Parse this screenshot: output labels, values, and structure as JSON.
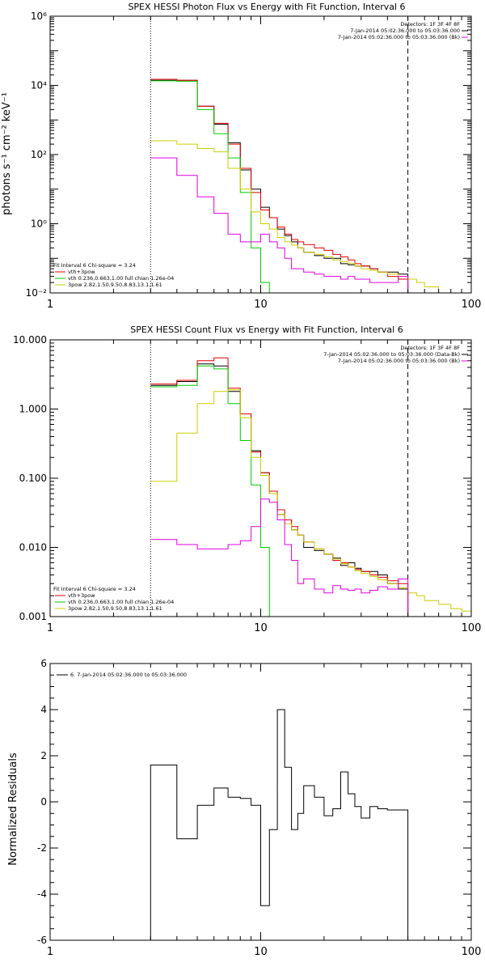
{
  "chart_data": [
    {
      "type": "line",
      "title": "SPEX HESSI Photon Flux vs Energy with Fit Function, Interval 6",
      "ylabel": "photons s⁻¹ cm⁻² keV⁻¹",
      "xlabel": "",
      "xscale": "log",
      "yscale": "log",
      "xlim": [
        1,
        100
      ],
      "ylim": [
        0.01,
        1000000
      ],
      "x_ticks": [
        {
          "value": 1,
          "label": "1"
        },
        {
          "value": 10,
          "label": "10"
        },
        {
          "value": 100,
          "label": "100"
        }
      ],
      "y_ticks": [
        {
          "value": 0.01,
          "label": "10⁻²"
        },
        {
          "value": 1,
          "label": "10⁰"
        },
        {
          "value": 100,
          "label": "10²"
        },
        {
          "value": 10000,
          "label": "10⁴"
        },
        {
          "value": 1000000,
          "label": "10⁶"
        }
      ],
      "vlines": [
        {
          "x": 3,
          "style": "dotted"
        },
        {
          "x": 50,
          "style": "dashed"
        }
      ],
      "legend_topright": [
        {
          "text": "Detectors: 1F 3F 4F 8F",
          "color": "#000000"
        },
        {
          "text": "7-Jan-2014 05:02:36.000 to 05:03:36.000",
          "color": "#000000"
        },
        {
          "text": "7-Jan-2014 05:02:36.000 to 05:03:36.000 (Bk)",
          "color": "#e000e0"
        }
      ],
      "legend_bottomleft": [
        {
          "text": "Fit Interval  6    Chi-square = 3.24",
          "color": "#000000"
        },
        {
          "text": "vth+3pow",
          "color": "#e00000"
        },
        {
          "text": "vth 0.236,0.663,1.00  full chian 1.26e-04",
          "color": "#00cc00"
        },
        {
          "text": "3pow 2.82,1.50,9.50,8.83,13.1,1.61",
          "color": "#cccc00"
        }
      ],
      "series": [
        {
          "name": "7-Jan-2014 05:02:36.000 to 05:03:36.000",
          "color": "#000000",
          "edges": [
            3,
            4,
            5,
            6,
            7,
            8,
            9,
            10,
            11,
            12,
            13,
            14,
            15,
            16,
            18,
            20,
            22,
            24,
            26,
            28,
            30,
            33,
            36,
            40,
            45,
            50
          ],
          "values": [
            14000,
            14000,
            2500,
            750,
            220,
            36,
            10,
            3,
            1.5,
            0.7,
            0.45,
            0.3,
            0.2,
            0.15,
            0.12,
            0.1,
            0.1,
            0.07,
            0.065,
            0.06,
            0.06,
            0.05,
            0.04,
            0.04,
            0.035
          ]
        },
        {
          "name": "vth+3pow",
          "color": "#e00000",
          "edges": [
            3,
            4,
            5,
            6,
            7,
            8,
            9,
            10,
            11,
            12,
            13,
            14,
            15,
            16,
            18,
            20,
            22,
            24,
            26,
            28,
            30,
            33,
            36,
            40,
            45,
            50
          ],
          "values": [
            15000,
            14000,
            2500,
            800,
            200,
            40,
            8,
            2.5,
            1.5,
            0.8,
            0.5,
            0.35,
            0.3,
            0.25,
            0.2,
            0.17,
            0.13,
            0.11,
            0.09,
            0.07,
            0.06,
            0.05,
            0.04,
            0.03,
            0.025
          ]
        },
        {
          "name": "vth",
          "color": "#00cc00",
          "edges": [
            3,
            4,
            5,
            6,
            7,
            8,
            9,
            10,
            11
          ],
          "values": [
            13500,
            13000,
            2000,
            400,
            80,
            8,
            0.2,
            0.02
          ]
        },
        {
          "name": "3pow",
          "color": "#cccc00",
          "edges": [
            3,
            4,
            5,
            6,
            7,
            8,
            9,
            10,
            11,
            12,
            13,
            14,
            15,
            16,
            18,
            20,
            22,
            24,
            26,
            28,
            30,
            33,
            36,
            40,
            45,
            50,
            55,
            60,
            70
          ],
          "values": [
            250,
            200,
            150,
            120,
            40,
            10,
            2.2,
            1,
            0.7,
            0.4,
            0.3,
            0.24,
            0.2,
            0.15,
            0.13,
            0.11,
            0.09,
            0.08,
            0.07,
            0.06,
            0.05,
            0.045,
            0.04,
            0.035,
            0.03,
            0.025,
            0.02,
            0.015
          ]
        },
        {
          "name": "7-Jan-2014 05:02:36.000 to 05:03:36.000 (Bk)",
          "color": "#e000e0",
          "edges": [
            3,
            4,
            5,
            6,
            7,
            8,
            9,
            10,
            11,
            12,
            13,
            14,
            15,
            16,
            18,
            20,
            22,
            24,
            26,
            28,
            30,
            33,
            36,
            40,
            45,
            50
          ],
          "values": [
            80,
            25,
            6,
            2,
            0.5,
            0.3,
            0.3,
            0.5,
            0.3,
            0.2,
            0.1,
            0.05,
            0.05,
            0.04,
            0.035,
            0.03,
            0.03,
            0.025,
            0.03,
            0.025,
            0.025,
            0.02,
            0.02,
            0.02,
            0.03
          ]
        }
      ]
    },
    {
      "type": "line",
      "title": "SPEX HESSI Count Flux vs Energy with Fit Function, Interval 6",
      "xlabel": "",
      "ylabel": "",
      "xscale": "log",
      "yscale": "log",
      "xlim": [
        1,
        100
      ],
      "ylim": [
        0.001,
        10
      ],
      "x_ticks": [
        {
          "value": 1,
          "label": "1"
        },
        {
          "value": 10,
          "label": "10"
        },
        {
          "value": 100,
          "label": "100"
        }
      ],
      "y_ticks": [
        {
          "value": 0.001,
          "label": "0.001"
        },
        {
          "value": 0.01,
          "label": "0.010"
        },
        {
          "value": 0.1,
          "label": "0.100"
        },
        {
          "value": 1,
          "label": "1.000"
        },
        {
          "value": 10,
          "label": "10.000"
        }
      ],
      "vlines": [
        {
          "x": 3,
          "style": "dotted"
        },
        {
          "x": 50,
          "style": "dashed"
        }
      ],
      "legend_topright": [
        {
          "text": "Detectors: 1F 3F 4F 8F",
          "color": "#000000"
        },
        {
          "text": "7-Jan-2014 05:02:36.000 to 05:03:36.000 (Data-Bk)",
          "color": "#000000"
        },
        {
          "text": "7-Jan-2014 05:02:36.000 to 05:03:36.000 (Bk)",
          "color": "#e000e0"
        }
      ],
      "legend_bottomleft": [
        {
          "text": "Fit Interval  6    Chi-square = 3.24",
          "color": "#000000"
        },
        {
          "text": "vth+3pow",
          "color": "#e00000"
        },
        {
          "text": "vth 0.236,0.663,1.00  full chian 1.26e-04",
          "color": "#00cc00"
        },
        {
          "text": "3pow 2.82,1.50,9.50,8.83,13.1,1.61",
          "color": "#cccc00"
        }
      ],
      "series": [
        {
          "name": "7-Jan-2014 05:02:36.000 to 05:03:36.000 (Data-Bk)",
          "color": "#000000",
          "edges": [
            3,
            4,
            5,
            6,
            7,
            8,
            9,
            10,
            11,
            12,
            13,
            14,
            15,
            16,
            18,
            20,
            22,
            24,
            26,
            28,
            30,
            33,
            36,
            40,
            45,
            50
          ],
          "values": [
            2.2,
            2.5,
            4.5,
            4.2,
            1.8,
            0.85,
            0.25,
            0.12,
            0.06,
            0.03,
            0.025,
            0.018,
            0.015,
            0.01,
            0.009,
            0.008,
            0.007,
            0.0055,
            0.006,
            0.005,
            0.0045,
            0.0045,
            0.004,
            0.003,
            0.0025
          ]
        },
        {
          "name": "vth+3pow",
          "color": "#e00000",
          "edges": [
            3,
            4,
            5,
            6,
            7,
            8,
            9,
            10,
            11,
            12,
            13,
            14,
            15,
            16,
            18,
            20,
            22,
            24,
            26,
            28,
            30,
            33,
            36,
            40,
            45,
            50
          ],
          "values": [
            2.3,
            2.6,
            5,
            5.5,
            2,
            0.85,
            0.24,
            0.12,
            0.065,
            0.035,
            0.025,
            0.02,
            0.015,
            0.012,
            0.0095,
            0.008,
            0.0065,
            0.006,
            0.0052,
            0.0048,
            0.0045,
            0.004,
            0.0037,
            0.0033,
            0.003
          ]
        },
        {
          "name": "vth",
          "color": "#00cc00",
          "edges": [
            3,
            4,
            5,
            6,
            7,
            8,
            9,
            10,
            11
          ],
          "values": [
            2.1,
            2.2,
            4.2,
            3.8,
            1.2,
            0.35,
            0.08,
            0.01
          ]
        },
        {
          "name": "3pow",
          "color": "#cccc00",
          "edges": [
            3,
            4,
            5,
            6,
            7,
            8,
            9,
            10,
            11,
            12,
            13,
            14,
            15,
            16,
            18,
            20,
            22,
            24,
            26,
            28,
            30,
            33,
            36,
            40,
            45,
            50,
            55,
            60,
            70,
            80,
            90,
            100
          ],
          "values": [
            0.09,
            0.45,
            1.2,
            1.8,
            1.9,
            0.75,
            0.2,
            0.11,
            0.06,
            0.03,
            0.022,
            0.018,
            0.015,
            0.012,
            0.0095,
            0.008,
            0.0068,
            0.0058,
            0.0052,
            0.0046,
            0.0042,
            0.0038,
            0.0034,
            0.003,
            0.0026,
            0.0022,
            0.002,
            0.0017,
            0.0015,
            0.0013,
            0.0012
          ]
        },
        {
          "name": "7-Jan-2014 05:02:36.000 to 05:03:36.000 (Bk)",
          "color": "#e000e0",
          "edges": [
            3,
            4,
            5,
            6,
            7,
            8,
            9,
            10,
            11,
            12,
            13,
            14,
            15,
            16,
            18,
            20,
            22,
            24,
            26,
            28,
            30,
            33,
            36,
            40,
            45,
            50
          ],
          "values": [
            0.013,
            0.011,
            0.0095,
            0.0095,
            0.011,
            0.0125,
            0.02,
            0.05,
            0.045,
            0.025,
            0.011,
            0.0065,
            0.003,
            0.0035,
            0.0025,
            0.0022,
            0.0028,
            0.0025,
            0.0024,
            0.0025,
            0.0022,
            0.0024,
            0.0027,
            0.0025,
            0.0035
          ]
        }
      ]
    },
    {
      "type": "line",
      "title": "",
      "xlabel": "",
      "ylabel": "Normalized Residuals",
      "xscale": "log",
      "yscale": "linear",
      "xlim": [
        1,
        100
      ],
      "ylim": [
        -6,
        6
      ],
      "x_ticks": [
        {
          "value": 1,
          "label": "1"
        },
        {
          "value": 10,
          "label": "10"
        },
        {
          "value": 100,
          "label": "100"
        }
      ],
      "y_ticks": [
        {
          "value": -6,
          "label": "-6"
        },
        {
          "value": -4,
          "label": "-4"
        },
        {
          "value": -2,
          "label": "-2"
        },
        {
          "value": 0,
          "label": "0"
        },
        {
          "value": 2,
          "label": "2"
        },
        {
          "value": 4,
          "label": "4"
        },
        {
          "value": 6,
          "label": "6"
        }
      ],
      "vlines": [],
      "legend_topleft": [
        {
          "text": "6. 7-Jan-2014 05:02:36.000 to 05:03:36.000",
          "color": "#000000"
        }
      ],
      "series": [
        {
          "name": "6. 7-Jan-2014 05:02:36.000 to 05:03:36.000",
          "color": "#000000",
          "baseline": -6,
          "edges": [
            3,
            4,
            5,
            6,
            7,
            8,
            9,
            10,
            11,
            12,
            13,
            14,
            15,
            16,
            18,
            20,
            22,
            24,
            26,
            28,
            30,
            33,
            36,
            40,
            45,
            50
          ],
          "values": [
            1.6,
            -1.6,
            -0.15,
            0.6,
            0.2,
            0.15,
            -0.15,
            -4.5,
            -1.2,
            4.0,
            1.5,
            -1.2,
            -0.5,
            0.7,
            0.2,
            -0.6,
            -0.3,
            1.3,
            0.35,
            -0.2,
            -0.7,
            -0.2,
            -0.3,
            -0.35,
            -0.35
          ]
        }
      ]
    }
  ]
}
